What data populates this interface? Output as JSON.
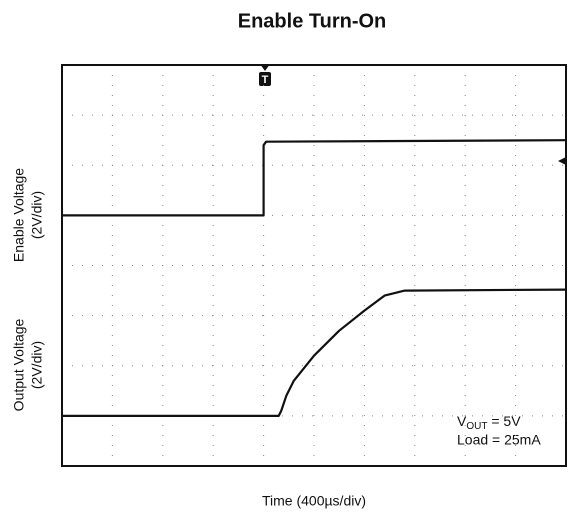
{
  "chart_data": {
    "type": "line",
    "title": "Enable Turn-On",
    "xlabel": "Time (400µs/div)",
    "ylabels": [
      [
        "Enable Voltage",
        "(2V/div)"
      ],
      [
        "Output Voltage",
        "(2V/div)"
      ]
    ],
    "trigger_marker": "T",
    "annotation_1": {
      "main": "V",
      "sub": "OUT",
      "tail": " = 5V"
    },
    "annotation_2": "Load = 25mA",
    "xlim": [
      0,
      10
    ],
    "ylim": [
      0,
      8
    ],
    "xticks": [
      0,
      1,
      2,
      3,
      4,
      5,
      6,
      7,
      8,
      9,
      10
    ],
    "yticks": [
      0,
      1,
      2,
      3,
      4,
      5,
      6,
      7,
      8
    ],
    "grid": true,
    "series": [
      {
        "color": "#111111",
        "x": [
          0,
          4.0,
          4.0,
          4.05,
          10
        ],
        "values": [
          5.0,
          5.0,
          6.4,
          6.47,
          6.5
        ]
      },
      {
        "color": "#111111",
        "x": [
          0,
          4.3,
          4.35,
          4.45,
          4.6,
          5.0,
          5.5,
          6.0,
          6.4,
          6.8,
          10
        ],
        "values": [
          1.0,
          1.0,
          1.1,
          1.4,
          1.7,
          2.2,
          2.7,
          3.1,
          3.4,
          3.5,
          3.52
        ]
      }
    ]
  }
}
